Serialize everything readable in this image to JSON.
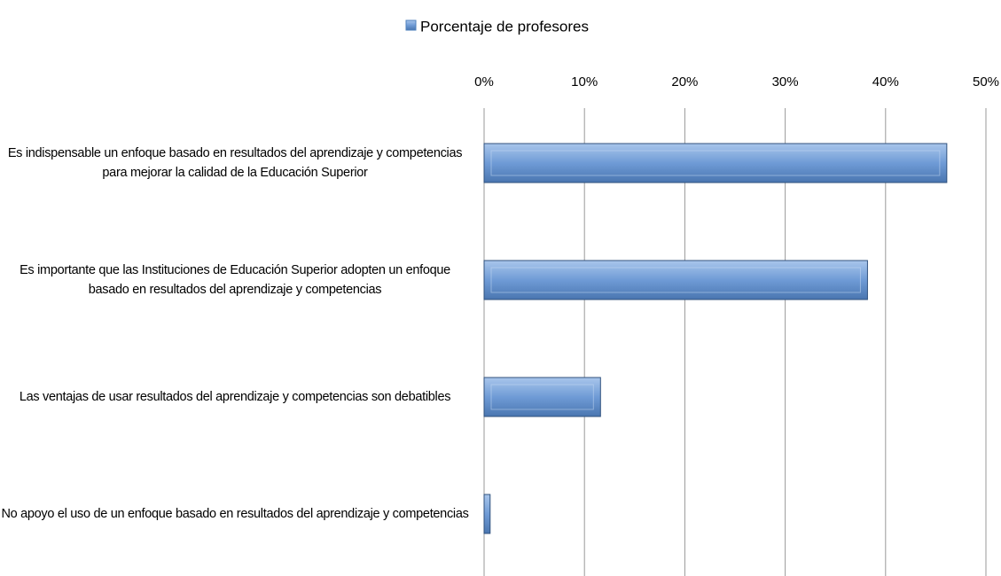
{
  "chart_data": {
    "type": "bar",
    "orientation": "horizontal",
    "categories": [
      "Es indispensable un enfoque basado en resultados del aprendizaje y competencias para mejorar la calidad de la Educación Superior",
      "Es importante que las Instituciones de Educación Superior adopten un enfoque basado en resultados del aprendizaje y competencias",
      "Las ventajas de usar resultados del aprendizaje y competencias son debatibles",
      "No apoyo el uso de un enfoque basado en resultados del aprendizaje y competencias"
    ],
    "series": [
      {
        "name": "Porcentaje de profesores",
        "color": "#4f81bd",
        "values": [
          46.1,
          38.2,
          11.6,
          0.6
        ]
      }
    ],
    "xlim": [
      0,
      50
    ],
    "xticks": [
      {
        "value": 0,
        "label": "0%"
      },
      {
        "value": 10,
        "label": "10%"
      },
      {
        "value": 20,
        "label": "20%"
      },
      {
        "value": 30,
        "label": "30%"
      },
      {
        "value": 40,
        "label": "40%"
      },
      {
        "value": 50,
        "label": "50%"
      }
    ],
    "grid": true,
    "legend": "top"
  }
}
